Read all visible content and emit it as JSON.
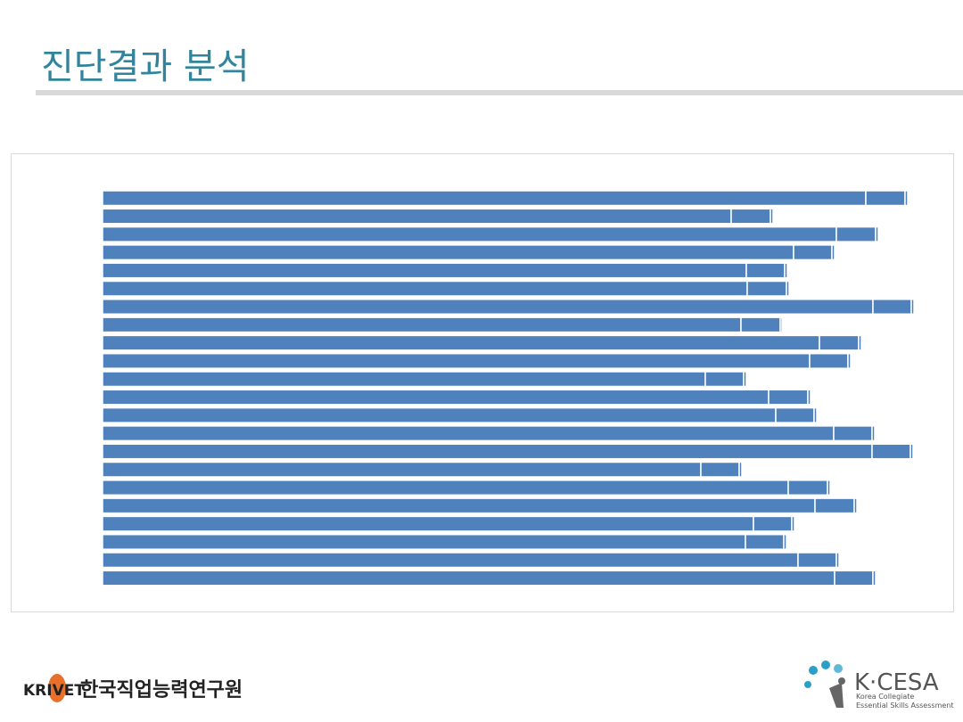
{
  "slide": {
    "title": "진단결과 분석"
  },
  "chart_data": {
    "type": "bar",
    "orientation": "horizontal",
    "stacked": true,
    "categories": [
      null,
      null,
      null,
      null,
      null,
      null,
      null,
      null,
      null,
      null,
      null,
      null,
      null,
      null,
      null,
      null,
      null,
      null,
      null,
      null,
      null,
      null
    ],
    "series": [
      {
        "color": "#4f81bd",
        "values": [
          856,
          705,
          823,
          775,
          722,
          723,
          864,
          716,
          804,
          793,
          676,
          747,
          755,
          820,
          863,
          671,
          769,
          799,
          730,
          721,
          780,
          821
        ]
      },
      {
        "color": "#4f81bd",
        "values": [
          44,
          44,
          44,
          43,
          43,
          44,
          43,
          44,
          44,
          43,
          43,
          44,
          43,
          43,
          43,
          43,
          44,
          44,
          43,
          43,
          43,
          43
        ]
      },
      {
        "color": "#4f81bd",
        "values": [
          3,
          3,
          3,
          3,
          3,
          3,
          3,
          2,
          3,
          3,
          3,
          3,
          3,
          3,
          3,
          3,
          3,
          3,
          3,
          3,
          3,
          3
        ]
      }
    ],
    "xlim": [
      0,
      915
    ]
  },
  "footer": {
    "left_brand": "KRIVET",
    "left_name": "한국직업능력연구원",
    "right_brand": "K·CESA",
    "right_line1": "Korea Collegiate",
    "right_line2": "Essential Skills Assessment"
  }
}
